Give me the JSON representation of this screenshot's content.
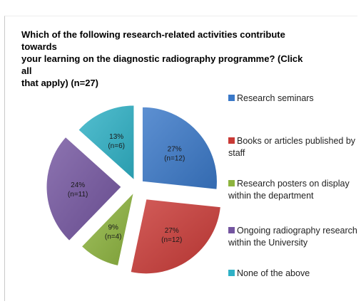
{
  "chart_data": {
    "type": "pie",
    "title": "Which of the following research-related activities contribute towards\nyour learning on the diagnostic radiography programme? (Click all\nthat apply) (n=27)",
    "slices": [
      {
        "label": "Research seminars",
        "percent_label": "27%",
        "count_label": "(n=12)",
        "value": 12,
        "color": "#3a78c8"
      },
      {
        "label": "Books or articles published by staff",
        "percent_label": "27%",
        "count_label": "(n=12)",
        "value": 12,
        "color": "#c93a36"
      },
      {
        "label": "Research posters on display within the department",
        "percent_label": "9%",
        "count_label": "(n=4)",
        "value": 4,
        "color": "#8db43e"
      },
      {
        "label": "Ongoing radiography research within the University",
        "percent_label": "24%",
        "count_label": "(n=11)",
        "value": 11,
        "color": "#7455a0"
      },
      {
        "label": "None of the above",
        "percent_label": "13%",
        "count_label": "(n=6)",
        "value": 6,
        "color": "#2fb1c6"
      }
    ],
    "legend_position": "right"
  }
}
